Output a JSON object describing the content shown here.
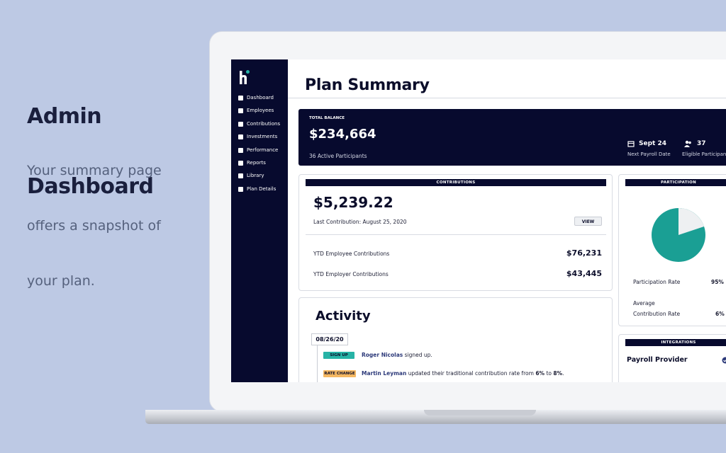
{
  "intro": {
    "title_lines": [
      "Admin",
      "Dashboard"
    ],
    "description_lines": [
      "Your summary page",
      "offers a snapshot of",
      "your plan."
    ]
  },
  "sidebar": {
    "nav": [
      "Dashboard",
      "Employees",
      "Contributions",
      "Investments",
      "Performance",
      "Reports",
      "Library",
      "Plan Details"
    ]
  },
  "page": {
    "title": "Plan Summary"
  },
  "balance": {
    "label": "TOTAL BALANCE",
    "amount": "$234,664",
    "participants": "36 Active Participants",
    "payroll_date": "Sept 24",
    "payroll_label": "Next Payroll Date",
    "eligible": "37",
    "eligible_label": "Eligible Participants"
  },
  "contributions": {
    "header": "CONTRIBUTIONS",
    "amount": "$5,239.22",
    "last": "Last Contribution: August 25, 2020",
    "button": "VIEW",
    "rows": [
      [
        "YTD Employee Contributions",
        "$76,231"
      ],
      [
        "YTD Employer Contributions",
        "$43,445"
      ]
    ]
  },
  "participation": {
    "header": "PARTICIPATION",
    "rate_label": "Participation Rate",
    "rate": "95%",
    "avg_label_1": "Average",
    "avg_label_2": "Contribution Rate",
    "avg": "6%"
  },
  "activity": {
    "title": "Activity",
    "date": "08/26/20",
    "entries": [
      {
        "badge": "SIGN UP",
        "name": "Roger Nicolas",
        "text": " signed up."
      },
      {
        "badge": "RATE CHANGE",
        "name": "Martin Leyman",
        "text": " updated their traditional contribution rate from ",
        "from": "6%",
        "connector": " to ",
        "to": "8%",
        "end": "."
      }
    ]
  },
  "integrations": {
    "header": "INTEGRATIONS",
    "provider": "Payroll Provider"
  }
}
